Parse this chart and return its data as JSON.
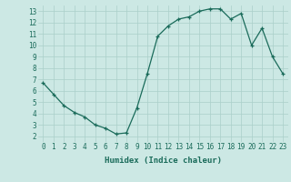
{
  "x": [
    0,
    1,
    2,
    3,
    4,
    5,
    6,
    7,
    8,
    9,
    10,
    11,
    12,
    13,
    14,
    15,
    16,
    17,
    18,
    19,
    20,
    21,
    22,
    23
  ],
  "y": [
    6.7,
    5.7,
    4.7,
    4.1,
    3.7,
    3.0,
    2.7,
    2.2,
    2.3,
    4.5,
    7.5,
    10.8,
    11.7,
    12.3,
    12.5,
    13.0,
    13.2,
    13.2,
    12.3,
    12.8,
    10.0,
    11.5,
    9.0,
    7.5
  ],
  "xlabel": "Humidex (Indice chaleur)",
  "xlim": [
    -0.5,
    23.5
  ],
  "ylim": [
    1.5,
    13.5
  ],
  "xticks": [
    0,
    1,
    2,
    3,
    4,
    5,
    6,
    7,
    8,
    9,
    10,
    11,
    12,
    13,
    14,
    15,
    16,
    17,
    18,
    19,
    20,
    21,
    22,
    23
  ],
  "yticks": [
    2,
    3,
    4,
    5,
    6,
    7,
    8,
    9,
    10,
    11,
    12,
    13
  ],
  "line_color": "#1a6b5a",
  "marker": "+",
  "bg_color": "#cce8e4",
  "grid_color": "#aacfc9",
  "tick_label_color": "#1a6b5a",
  "label_color": "#1a6b5a",
  "font_family": "monospace",
  "tick_fontsize": 5.5,
  "xlabel_fontsize": 6.5
}
